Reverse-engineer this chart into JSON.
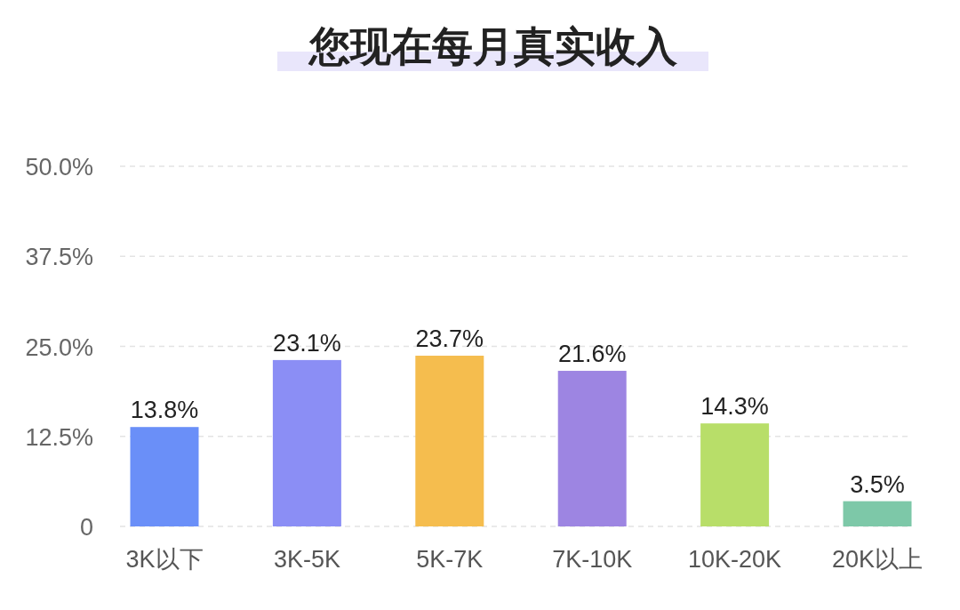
{
  "chart_data": {
    "type": "bar",
    "title": "您现在每月真实收入",
    "categories": [
      "3K以下",
      "3K-5K",
      "5K-7K",
      "7K-10K",
      "10K-20K",
      "20K以上"
    ],
    "values": [
      13.8,
      23.1,
      23.7,
      21.6,
      14.3,
      3.5
    ],
    "value_labels": [
      "13.8%",
      "23.1%",
      "23.7%",
      "21.6%",
      "14.3%",
      "3.5%"
    ],
    "colors": [
      "#6a8ff8",
      "#8b8ef5",
      "#f5bd4e",
      "#9d85e2",
      "#b8de69",
      "#7dc8a8"
    ],
    "ylim": [
      0,
      50
    ],
    "yticks": [
      {
        "value": 0,
        "label": "0"
      },
      {
        "value": 12.5,
        "label": "12.5%"
      },
      {
        "value": 25,
        "label": "25.0%"
      },
      {
        "value": 37.5,
        "label": "37.5%"
      },
      {
        "value": 50,
        "label": "50.0%"
      }
    ],
    "grid": "y"
  }
}
